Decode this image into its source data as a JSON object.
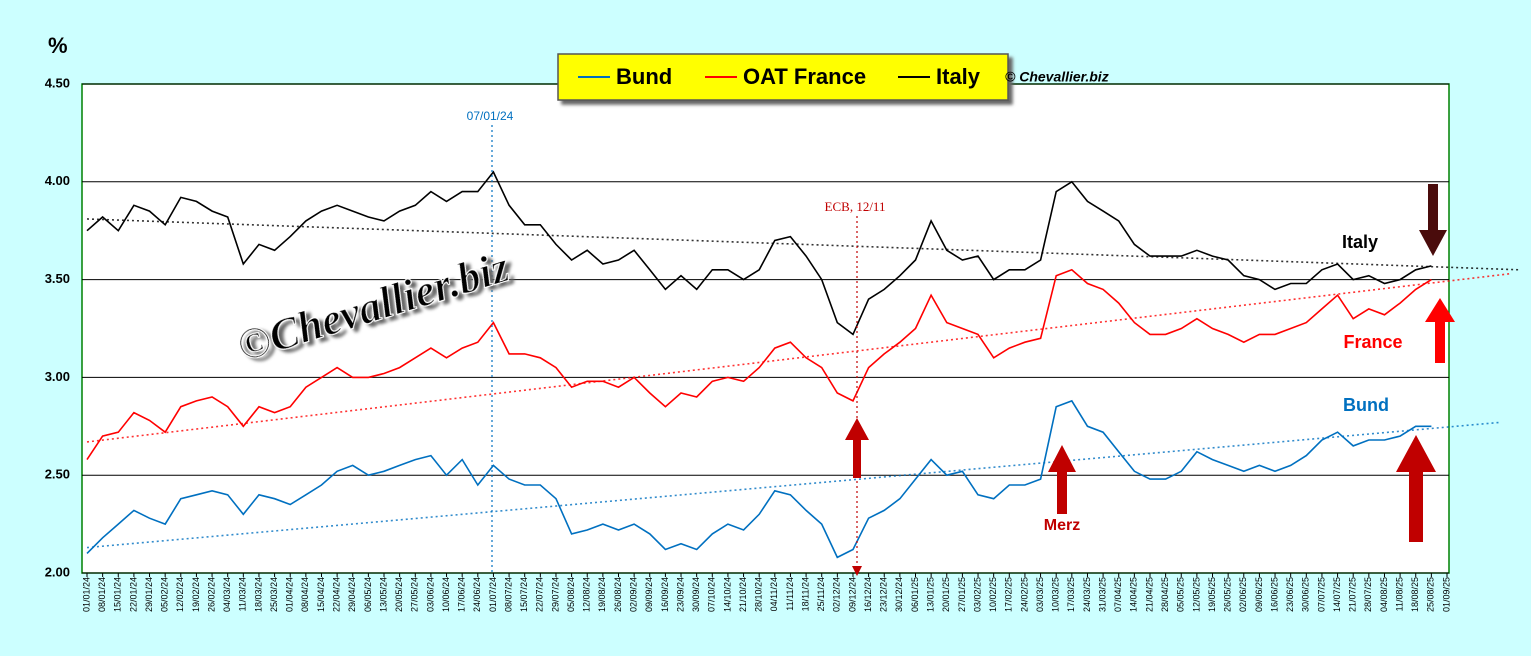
{
  "chart_data": {
    "type": "line",
    "y_label": "%",
    "copyright": "© Chevallier.biz",
    "watermark": "©Chevallier.biz",
    "categories": [
      "01/01/24",
      "08/01/24",
      "15/01/24",
      "22/01/24",
      "29/01/24",
      "05/02/24",
      "12/02/24",
      "19/02/24",
      "26/02/24",
      "04/03/24",
      "11/03/24",
      "18/03/24",
      "25/03/24",
      "01/04/24",
      "08/04/24",
      "15/04/24",
      "22/04/24",
      "29/04/24",
      "06/05/24",
      "13/05/24",
      "20/05/24",
      "27/05/24",
      "03/06/24",
      "10/06/24",
      "17/06/24",
      "24/06/24",
      "01/07/24",
      "08/07/24",
      "15/07/24",
      "22/07/24",
      "29/07/24",
      "05/08/24",
      "12/08/24",
      "19/08/24",
      "26/08/24",
      "02/09/24",
      "09/09/24",
      "16/09/24",
      "23/09/24",
      "30/09/24",
      "07/10/24",
      "14/10/24",
      "21/10/24",
      "28/10/24",
      "04/11/24",
      "11/11/24",
      "18/11/24",
      "25/11/24",
      "02/12/24",
      "09/12/24",
      "16/12/24",
      "23/12/24",
      "30/12/24",
      "06/01/25",
      "13/01/25",
      "20/01/25",
      "27/01/25",
      "03/02/25",
      "10/02/25",
      "17/02/25",
      "24/02/25",
      "03/03/25",
      "10/03/25",
      "17/03/25",
      "24/03/25",
      "31/03/25",
      "07/04/25",
      "14/04/25",
      "21/04/25",
      "28/04/25",
      "05/05/25",
      "12/05/25",
      "19/05/25",
      "26/05/25",
      "02/06/25",
      "09/06/25",
      "16/06/25",
      "23/06/25",
      "30/06/25",
      "07/07/25",
      "14/07/25",
      "21/07/25",
      "28/07/25",
      "04/08/25",
      "11/08/25",
      "18/08/25",
      "25/08/25",
      "01/09/25"
    ],
    "series": [
      {
        "name": "Bund",
        "color": "#0070c0",
        "label": "Bund",
        "values": [
          2.1,
          2.18,
          2.25,
          2.32,
          2.28,
          2.25,
          2.38,
          2.4,
          2.42,
          2.4,
          2.3,
          2.4,
          2.38,
          2.35,
          2.4,
          2.45,
          2.52,
          2.55,
          2.5,
          2.52,
          2.55,
          2.58,
          2.6,
          2.5,
          2.58,
          2.45,
          2.55,
          2.48,
          2.45,
          2.45,
          2.38,
          2.2,
          2.22,
          2.25,
          2.22,
          2.25,
          2.2,
          2.12,
          2.15,
          2.12,
          2.2,
          2.25,
          2.22,
          2.3,
          2.42,
          2.4,
          2.32,
          2.25,
          2.08,
          2.12,
          2.28,
          2.32,
          2.38,
          2.48,
          2.58,
          2.5,
          2.52,
          2.4,
          2.38,
          2.45,
          2.45,
          2.48,
          2.85,
          2.88,
          2.75,
          2.72,
          2.62,
          2.52,
          2.48,
          2.48,
          2.52,
          2.62,
          2.58,
          2.55,
          2.52,
          2.55,
          2.52,
          2.55,
          2.6,
          2.68,
          2.72,
          2.65,
          2.68,
          2.68,
          2.7,
          2.75,
          2.75,
          null
        ],
        "trend": [
          2.13,
          2.77
        ]
      },
      {
        "name": "OAT France",
        "color": "#ff0000",
        "label": "France",
        "values": [
          2.58,
          2.7,
          2.72,
          2.82,
          2.78,
          2.72,
          2.85,
          2.88,
          2.9,
          2.85,
          2.75,
          2.85,
          2.82,
          2.85,
          2.95,
          3.0,
          3.05,
          3.0,
          3.0,
          3.02,
          3.05,
          3.1,
          3.15,
          3.1,
          3.15,
          3.18,
          3.28,
          3.12,
          3.12,
          3.1,
          3.05,
          2.95,
          2.98,
          2.98,
          2.95,
          3.0,
          2.92,
          2.85,
          2.92,
          2.9,
          2.98,
          3.0,
          2.98,
          3.05,
          3.15,
          3.18,
          3.1,
          3.05,
          2.92,
          2.88,
          3.05,
          3.12,
          3.18,
          3.25,
          3.42,
          3.28,
          3.25,
          3.22,
          3.1,
          3.15,
          3.18,
          3.2,
          3.52,
          3.55,
          3.48,
          3.45,
          3.38,
          3.28,
          3.22,
          3.22,
          3.25,
          3.3,
          3.25,
          3.22,
          3.18,
          3.22,
          3.22,
          3.25,
          3.28,
          3.35,
          3.42,
          3.3,
          3.35,
          3.32,
          3.38,
          3.45,
          3.5,
          null
        ],
        "trend": [
          2.67,
          3.53
        ]
      },
      {
        "name": "Italy",
        "color": "#000000",
        "label": "Italy",
        "values": [
          3.75,
          3.82,
          3.75,
          3.88,
          3.85,
          3.78,
          3.92,
          3.9,
          3.85,
          3.82,
          3.58,
          3.68,
          3.65,
          3.72,
          3.8,
          3.85,
          3.88,
          3.85,
          3.82,
          3.8,
          3.85,
          3.88,
          3.95,
          3.9,
          3.95,
          3.95,
          4.05,
          3.88,
          3.78,
          3.78,
          3.68,
          3.6,
          3.65,
          3.58,
          3.6,
          3.65,
          3.55,
          3.45,
          3.52,
          3.45,
          3.55,
          3.55,
          3.5,
          3.55,
          3.7,
          3.72,
          3.62,
          3.5,
          3.28,
          3.22,
          3.4,
          3.45,
          3.52,
          3.6,
          3.8,
          3.65,
          3.6,
          3.62,
          3.5,
          3.55,
          3.55,
          3.6,
          3.95,
          4.0,
          3.9,
          3.85,
          3.8,
          3.68,
          3.62,
          3.62,
          3.62,
          3.65,
          3.62,
          3.6,
          3.52,
          3.5,
          3.45,
          3.48,
          3.48,
          3.55,
          3.58,
          3.5,
          3.52,
          3.48,
          3.5,
          3.55,
          3.57,
          null
        ],
        "trend": [
          3.81,
          3.55
        ]
      }
    ],
    "annotations": [
      "07/01/24",
      "ECB, 12/11",
      "Merz"
    ],
    "ylim": [
      2,
      4.5
    ],
    "yticks": [
      {
        "value": 2,
        "label": "2.00"
      },
      {
        "value": 2.5,
        "label": "2.50"
      },
      {
        "value": 3,
        "label": "3.00"
      },
      {
        "value": 3.5,
        "label": "3.50"
      },
      {
        "value": 4,
        "label": "4.00"
      },
      {
        "value": 4.5,
        "label": "4.50"
      }
    ],
    "grid": true
  }
}
